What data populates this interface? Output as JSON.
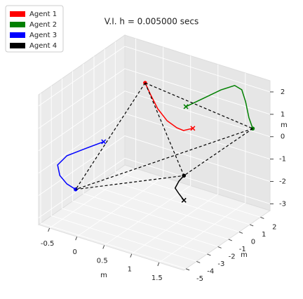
{
  "chart_data": {
    "type": "line3d",
    "title": "V.I. h = 0.005000 secs",
    "xlabel": "m",
    "ylabel": "m",
    "zlabel": "m",
    "xlim": [
      -0.7,
      1.95
    ],
    "ylim": [
      -5.2,
      2.9
    ],
    "zlim": [
      -3.3,
      2.5
    ],
    "xticks": [
      -0.5,
      0.0,
      0.5,
      1.0,
      1.5
    ],
    "yticks": [
      -5,
      -4,
      -3,
      -2,
      -1,
      0,
      1,
      2
    ],
    "zticks": [
      -3,
      -2,
      -1,
      0,
      1,
      2
    ],
    "grid": true,
    "legend": "upper left",
    "series": [
      {
        "name": "Agent 1",
        "color": "#ff0000",
        "x": [
          1.17,
          1.0,
          0.88,
          0.7,
          0.53,
          0.4,
          0.3
        ],
        "y": [
          -0.34,
          -0.34,
          -0.34,
          -0.34,
          -0.34,
          -0.34,
          -0.34
        ],
        "z": [
          0.84,
          0.61,
          0.64,
          0.82,
          1.22,
          1.75,
          2.2
        ]
      },
      {
        "name": "Agent 2",
        "color": "#008000",
        "x": [
          0.65,
          0.97,
          1.29,
          1.54,
          1.67,
          1.74,
          1.8,
          1.87
        ],
        "y": [
          1.69,
          1.69,
          1.69,
          1.69,
          1.69,
          1.69,
          1.69,
          1.69
        ],
        "z": [
          0.74,
          1.36,
          1.98,
          2.37,
          2.28,
          1.79,
          1.13,
          0.7
        ]
      },
      {
        "name": "Agent 3",
        "color": "#0000ff",
        "x": [
          0.25,
          -0.1,
          -0.42,
          -0.59,
          -0.55,
          -0.42,
          -0.26
        ],
        "y": [
          -3.98,
          -3.98,
          -3.98,
          -3.98,
          -3.98,
          -3.98,
          -3.98
        ],
        "z": [
          0.73,
          0.14,
          -0.41,
          -0.95,
          -1.39,
          -1.67,
          -1.79
        ]
      },
      {
        "name": "Agent 4",
        "color": "#000000",
        "x": [
          1.56,
          1.47,
          1.4,
          1.47,
          1.56
        ],
        "y": [
          -3.18,
          -3.18,
          -3.18,
          -3.18,
          -3.18
        ],
        "z": [
          -1.14,
          -0.92,
          -0.72,
          -0.35,
          -0.04
        ]
      }
    ]
  }
}
